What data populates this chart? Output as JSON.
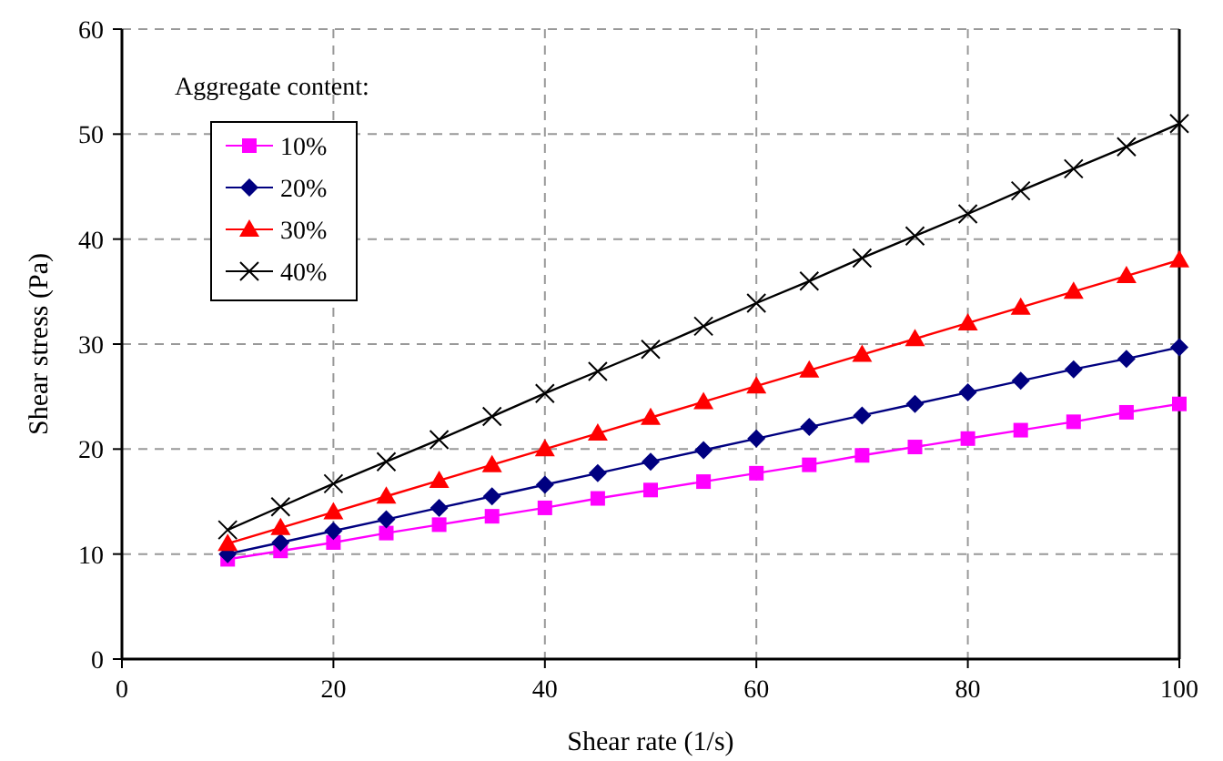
{
  "chart_data": {
    "type": "line",
    "xlabel": "Shear rate (1/s)",
    "ylabel": "Shear stress (Pa)",
    "legend_title": "Aggregate content:",
    "legend": "top left",
    "grid": true,
    "line_style": "solid",
    "x": [
      10,
      15,
      20,
      25,
      30,
      35,
      40,
      45,
      50,
      55,
      60,
      65,
      70,
      75,
      80,
      85,
      90,
      95,
      100
    ],
    "xlim": [
      0,
      100
    ],
    "xticks": [
      0,
      20,
      40,
      60,
      80,
      100
    ],
    "ylim": [
      0,
      60
    ],
    "yticks": [
      0,
      10,
      20,
      30,
      40,
      50,
      60
    ],
    "series": [
      {
        "name": "10%",
        "color": "#ff00ff",
        "marker": "square",
        "values": [
          9.5,
          10.3,
          11.1,
          12.0,
          12.8,
          13.6,
          14.4,
          15.3,
          16.1,
          16.9,
          17.7,
          18.5,
          19.4,
          20.2,
          21.0,
          21.8,
          22.6,
          23.5,
          24.3
        ]
      },
      {
        "name": "20%",
        "color": "#000080",
        "marker": "diamond",
        "values": [
          10.0,
          11.1,
          12.2,
          13.3,
          14.4,
          15.5,
          16.6,
          17.7,
          18.8,
          19.9,
          21.0,
          22.1,
          23.2,
          24.3,
          25.4,
          26.5,
          27.6,
          28.6,
          29.7
        ]
      },
      {
        "name": "30%",
        "color": "#ff0000",
        "marker": "triangle",
        "values": [
          11.0,
          12.5,
          14.0,
          15.5,
          17.0,
          18.5,
          20.0,
          21.5,
          23.0,
          24.5,
          26.0,
          27.5,
          29.0,
          30.5,
          32.0,
          33.5,
          35.0,
          36.5,
          38.0
        ]
      },
      {
        "name": "40%",
        "color": "#000000",
        "marker": "cross",
        "values": [
          12.3,
          14.5,
          16.7,
          18.8,
          20.9,
          23.1,
          25.3,
          27.4,
          29.5,
          31.7,
          33.9,
          36.0,
          38.2,
          40.3,
          42.4,
          44.6,
          46.7,
          48.8,
          51.0
        ]
      }
    ]
  }
}
